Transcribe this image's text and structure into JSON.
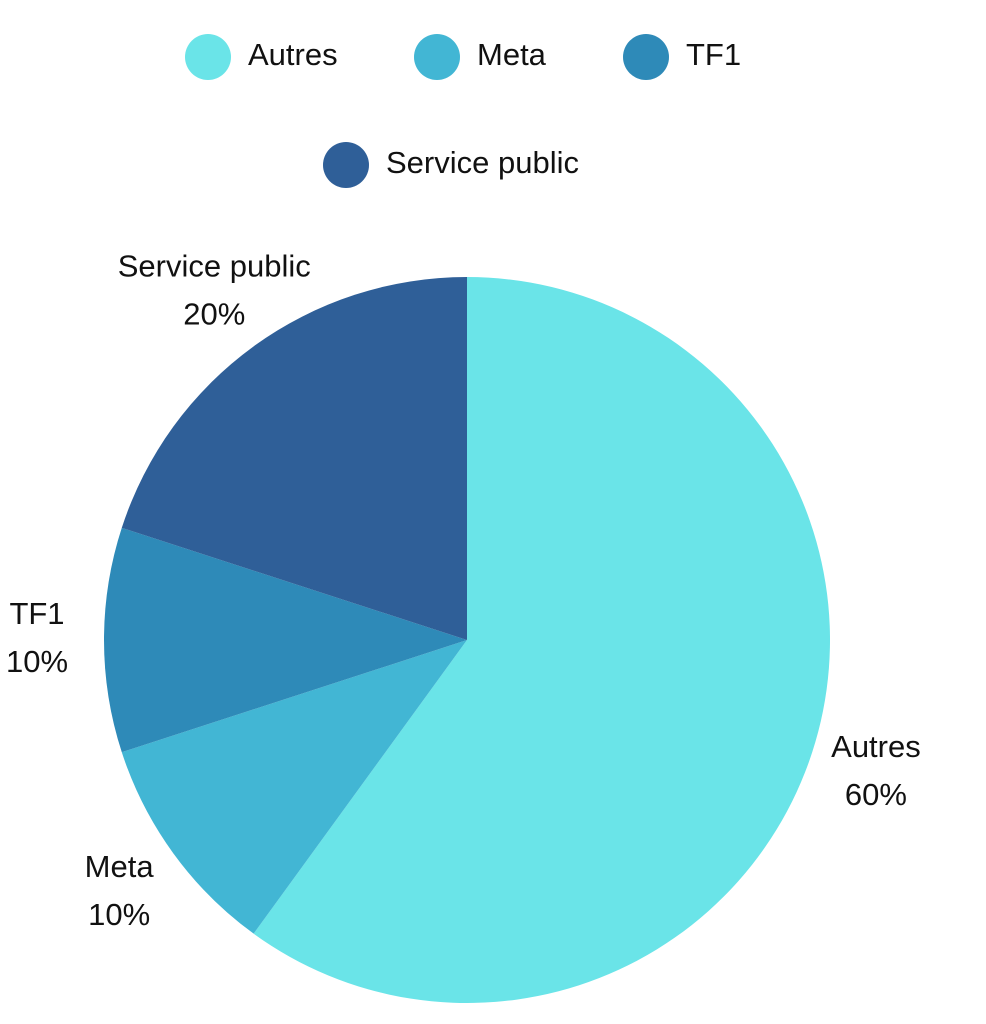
{
  "chart_data": {
    "type": "pie",
    "categories": [
      "Autres",
      "Meta",
      "TF1",
      "Service public"
    ],
    "values": [
      60,
      10,
      10,
      20
    ],
    "value_labels": [
      "60%",
      "10%",
      "10%",
      "20%"
    ],
    "colors": [
      "#6ae4e8",
      "#42b6d4",
      "#2e8ab8",
      "#2f5f98"
    ]
  }
}
